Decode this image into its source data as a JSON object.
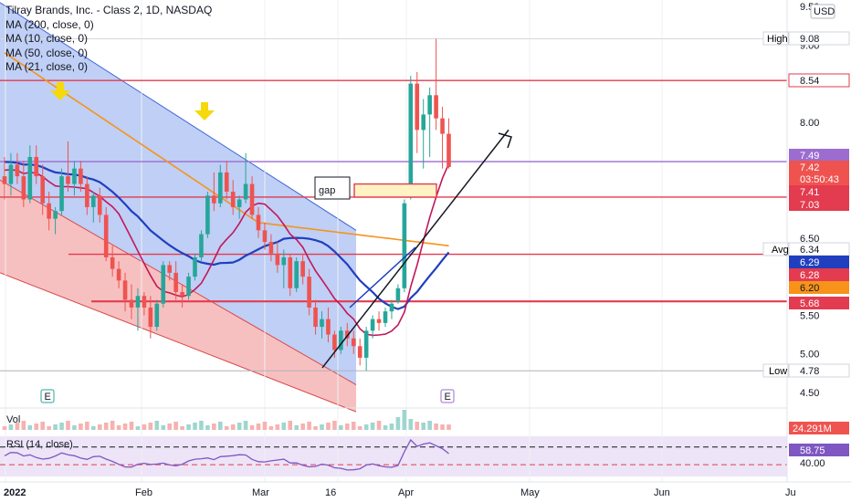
{
  "legend": {
    "title": "Tilray Brands, Inc. - Class 2, 1D, NASDAQ",
    "ma200": "MA (200, close, 0)",
    "ma10": "MA (10, close, 0)",
    "ma50": "MA (50, close, 0)",
    "ma21": "MA (21, close, 0)"
  },
  "currency": "USD",
  "annotations": {
    "gap": "gap",
    "high": "High",
    "low": "Low",
    "avg": "Avg",
    "vol": "Vol",
    "rsi": "RSI (14, close)",
    "earnings_marker": "E"
  },
  "chart_data": {
    "type": "candlestick",
    "symbol": "Tilray Brands, Inc. - Class 2",
    "interval": "1D",
    "exchange": "NASDAQ",
    "price_axis": {
      "ticks": [
        9.5,
        9.0,
        8.0,
        7.0,
        6.5,
        5.5,
        5.0,
        4.5
      ],
      "tick_labels": [
        "9.50",
        "9.00",
        "8.00",
        "7.00",
        "6.50",
        "5.50",
        "5.00",
        "4.50"
      ],
      "range": [
        4.3,
        9.55
      ]
    },
    "time_axis": {
      "labels": [
        "2022",
        "Feb",
        "Mar",
        "16",
        "Apr",
        "May",
        "Jun",
        "Ju"
      ]
    },
    "price_tags": [
      {
        "label": "High",
        "value": "9.08"
      },
      {
        "label": "",
        "value": "8.54"
      },
      {
        "label": "",
        "value": "7.49"
      },
      {
        "label": "",
        "value": "7.42"
      },
      {
        "label": "",
        "value": "03:50:43"
      },
      {
        "label": "",
        "value": "7.41"
      },
      {
        "label": "",
        "value": "7.03"
      },
      {
        "label": "Avg",
        "value": "6.34"
      },
      {
        "label": "",
        "value": "6.29"
      },
      {
        "label": "",
        "value": "6.28"
      },
      {
        "label": "",
        "value": "6.20"
      },
      {
        "label": "",
        "value": "5.68"
      },
      {
        "label": "Low",
        "value": "4.78"
      }
    ],
    "horizontal_levels": [
      8.54,
      7.49,
      7.03,
      6.29,
      5.68,
      4.78
    ],
    "candles": [
      [
        7.3,
        7.55,
        7.0,
        7.2
      ],
      [
        7.2,
        7.6,
        7.05,
        7.45
      ],
      [
        7.45,
        7.6,
        7.2,
        7.3
      ],
      [
        7.3,
        7.5,
        6.9,
        7.0
      ],
      [
        7.0,
        7.7,
        6.95,
        7.55
      ],
      [
        7.55,
        7.7,
        7.2,
        7.3
      ],
      [
        7.3,
        7.45,
        6.8,
        6.95
      ],
      [
        6.95,
        7.1,
        6.6,
        6.75
      ],
      [
        6.75,
        6.9,
        6.55,
        6.85
      ],
      [
        6.85,
        7.4,
        6.8,
        7.3
      ],
      [
        7.3,
        7.75,
        7.1,
        7.2
      ],
      [
        7.2,
        7.5,
        7.05,
        7.4
      ],
      [
        7.4,
        7.5,
        7.1,
        7.2
      ],
      [
        7.2,
        7.3,
        6.8,
        6.9
      ],
      [
        6.9,
        7.1,
        6.7,
        7.05
      ],
      [
        7.05,
        7.15,
        6.7,
        6.8
      ],
      [
        6.8,
        6.9,
        6.2,
        6.25
      ],
      [
        6.25,
        6.4,
        6.0,
        6.1
      ],
      [
        6.1,
        6.2,
        5.85,
        5.95
      ],
      [
        5.95,
        6.05,
        5.55,
        5.7
      ],
      [
        5.7,
        5.9,
        5.45,
        5.6
      ],
      [
        5.6,
        5.85,
        5.3,
        5.75
      ],
      [
        5.75,
        5.8,
        5.5,
        5.6
      ],
      [
        5.6,
        5.75,
        5.2,
        5.35
      ],
      [
        5.35,
        5.7,
        5.3,
        5.65
      ],
      [
        5.65,
        6.2,
        5.6,
        6.15
      ],
      [
        6.15,
        6.2,
        5.95,
        6.05
      ],
      [
        6.05,
        6.2,
        5.7,
        5.8
      ],
      [
        5.8,
        5.9,
        5.6,
        5.75
      ],
      [
        5.75,
        6.05,
        5.7,
        6.0
      ],
      [
        6.0,
        6.3,
        5.95,
        6.25
      ],
      [
        6.25,
        6.6,
        6.2,
        6.55
      ],
      [
        6.55,
        7.1,
        6.5,
        7.05
      ],
      [
        7.05,
        7.35,
        6.85,
        6.95
      ],
      [
        6.95,
        7.45,
        6.9,
        7.35
      ],
      [
        7.35,
        7.5,
        7.0,
        7.1
      ],
      [
        7.1,
        7.25,
        6.8,
        6.9
      ],
      [
        6.9,
        7.05,
        6.75,
        7.0
      ],
      [
        7.0,
        7.6,
        6.95,
        7.2
      ],
      [
        7.2,
        7.3,
        6.75,
        6.8
      ],
      [
        6.8,
        6.9,
        6.5,
        6.6
      ],
      [
        6.6,
        6.7,
        6.35,
        6.45
      ],
      [
        6.45,
        6.55,
        6.2,
        6.3
      ],
      [
        6.3,
        6.45,
        6.05,
        6.15
      ],
      [
        6.15,
        6.35,
        5.85,
        6.25
      ],
      [
        6.25,
        6.3,
        5.75,
        5.85
      ],
      [
        5.85,
        6.25,
        5.8,
        6.2
      ],
      [
        6.2,
        6.3,
        5.9,
        6.0
      ],
      [
        6.0,
        6.1,
        5.5,
        5.6
      ],
      [
        5.6,
        5.7,
        5.25,
        5.35
      ],
      [
        5.35,
        5.55,
        5.2,
        5.45
      ],
      [
        5.45,
        5.6,
        5.15,
        5.25
      ],
      [
        5.25,
        5.3,
        4.95,
        5.05
      ],
      [
        5.05,
        5.35,
        5.0,
        5.3
      ],
      [
        5.3,
        5.4,
        5.1,
        5.2
      ],
      [
        5.2,
        5.3,
        5.0,
        5.1
      ],
      [
        5.1,
        5.2,
        4.85,
        4.95
      ],
      [
        4.95,
        5.35,
        4.78,
        5.3
      ],
      [
        5.3,
        5.5,
        5.2,
        5.45
      ],
      [
        5.45,
        5.55,
        5.3,
        5.4
      ],
      [
        5.4,
        5.6,
        5.35,
        5.55
      ],
      [
        5.55,
        5.7,
        5.45,
        5.65
      ],
      [
        5.68,
        5.9,
        5.65,
        5.85
      ],
      [
        5.85,
        7.0,
        5.8,
        6.95
      ],
      [
        7.1,
        8.6,
        7.0,
        8.5
      ],
      [
        8.5,
        8.65,
        7.6,
        7.9
      ],
      [
        7.9,
        8.3,
        7.4,
        8.1
      ],
      [
        8.1,
        8.45,
        7.55,
        8.35
      ],
      [
        8.35,
        9.08,
        7.9,
        8.05
      ],
      [
        8.05,
        8.2,
        7.4,
        7.85
      ],
      [
        7.85,
        8.05,
        7.4,
        7.42
      ]
    ],
    "volume_label": "24.291M",
    "rsi": {
      "name": "RSI (14, close)",
      "value": "58.75",
      "levels": [
        70,
        40
      ],
      "axis_ticks": [
        "40.00"
      ]
    },
    "gap_zone": {
      "low": 7.03,
      "high": 7.2,
      "label": "gap"
    }
  }
}
